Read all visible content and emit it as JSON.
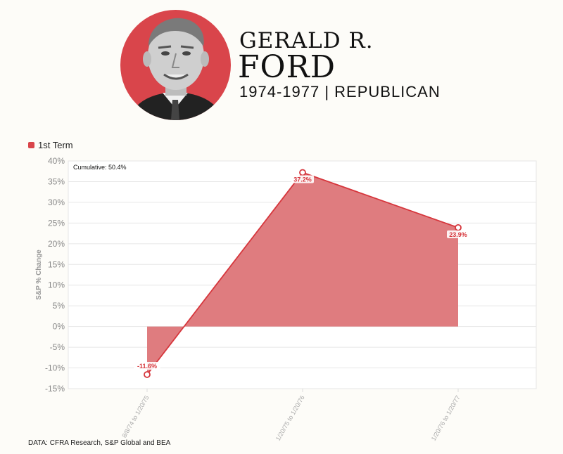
{
  "header": {
    "name_line1": "GERALD R.",
    "name_line2": "FORD",
    "subtitle": "1974-1977  |  REPUBLICAN",
    "portrait_background": "#d9454b"
  },
  "legend": {
    "label": "1st Term",
    "color": "#d9454b"
  },
  "annotation": "Cumulative: 50.4%",
  "source": "DATA: CFRA Research, S&P Global and BEA",
  "chart_data": {
    "type": "area",
    "categories": [
      "8/8/74 to 1/20/75",
      "1/20/75 to 1/20/76",
      "1/20/76 to 1/20/77"
    ],
    "series": [
      {
        "name": "1st Term",
        "values": [
          -11.6,
          37.2,
          23.9
        ],
        "labels": [
          "-11.6%",
          "37.2%",
          "23.9%"
        ]
      }
    ],
    "ylabel": "S&P % Change",
    "xlabel": "",
    "ylim": [
      -15,
      40
    ],
    "yticks": [
      40,
      35,
      30,
      25,
      20,
      15,
      10,
      5,
      0,
      -5,
      -10,
      -15
    ],
    "ytick_labels": [
      "40%",
      "35%",
      "30%",
      "25%",
      "20%",
      "15%",
      "10%",
      "5%",
      "0%",
      "-5%",
      "-10%",
      "-15%"
    ],
    "grid": true,
    "colors": {
      "line": "#d6363c",
      "fill": "#df7c7f"
    }
  }
}
